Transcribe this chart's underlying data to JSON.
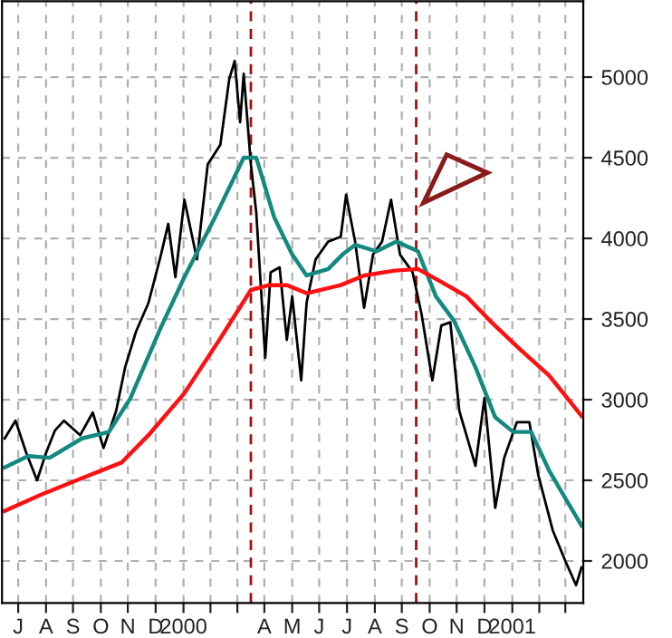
{
  "chart_data": {
    "type": "line",
    "series": [
      {
        "color": "#000000",
        "x": [
          "1999-07-01",
          "1999-07-13",
          "1999-07-25",
          "1999-08-06",
          "1999-08-16",
          "1999-08-26",
          "1999-09-05",
          "1999-09-23",
          "1999-10-07",
          "1999-10-19",
          "1999-11-02",
          "1999-11-12",
          "1999-11-24",
          "1999-12-08",
          "1999-12-22",
          "1999-12-30",
          "2000-01-07",
          "2000-01-17",
          "2000-01-31",
          "2000-02-12",
          "2000-02-26",
          "2000-03-07",
          "2000-03-13",
          "2000-03-19",
          "2000-03-23",
          "2000-03-31",
          "2000-04-06",
          "2000-04-16",
          "2000-04-22",
          "2000-05-02",
          "2000-05-10",
          "2000-05-16",
          "2000-05-26",
          "2000-06-01",
          "2000-06-11",
          "2000-06-25",
          "2000-07-09",
          "2000-07-15",
          "2000-07-25",
          "2000-08-04",
          "2000-08-14",
          "2000-08-24",
          "2000-09-03",
          "2000-09-13",
          "2000-09-27",
          "2000-10-07",
          "2000-10-19",
          "2000-10-29",
          "2000-11-08",
          "2000-11-18",
          "2000-12-06",
          "2000-12-16",
          "2000-12-28",
          "2001-01-07",
          "2001-01-21",
          "2001-02-04",
          "2001-02-14",
          "2001-03-02",
          "2001-03-16",
          "2001-03-28",
          "2001-04-03"
        ],
        "values": [
          2760,
          2870,
          2670,
          2500,
          2670,
          2810,
          2870,
          2780,
          2920,
          2700,
          2930,
          3200,
          3420,
          3600,
          3900,
          4090,
          3760,
          4240,
          3870,
          4460,
          4580,
          4990,
          5100,
          4720,
          5020,
          4460,
          4160,
          3260,
          3790,
          3820,
          3370,
          3640,
          3120,
          3600,
          3870,
          3980,
          4010,
          4270,
          3980,
          3570,
          3900,
          3980,
          4240,
          3900,
          3790,
          3530,
          3120,
          3460,
          3480,
          2930,
          2590,
          3010,
          2330,
          2640,
          2860,
          2860,
          2530,
          2190,
          2000,
          1850,
          1960
        ]
      },
      {
        "color": "#138a80",
        "x": [
          "1999-07-01",
          "1999-07-27",
          "1999-08-20",
          "1999-09-25",
          "1999-10-25",
          "1999-11-18",
          "1999-12-22",
          "2000-01-17",
          "2000-02-20",
          "2000-03-23",
          "2000-04-06",
          "2000-04-26",
          "2000-05-16",
          "2000-06-01",
          "2000-06-25",
          "2000-07-11",
          "2000-07-25",
          "2000-08-18",
          "2000-09-09",
          "2000-10-03",
          "2000-10-23",
          "2000-11-12",
          "2000-12-06",
          "2000-12-28",
          "2001-01-17",
          "2001-02-06",
          "2001-02-26",
          "2001-03-18",
          "2001-04-03"
        ],
        "values": [
          2580,
          2650,
          2640,
          2760,
          2800,
          3010,
          3450,
          3760,
          4130,
          4500,
          4500,
          4130,
          3900,
          3770,
          3810,
          3900,
          3960,
          3920,
          3980,
          3920,
          3640,
          3490,
          3200,
          2890,
          2800,
          2800,
          2560,
          2370,
          2220
        ]
      },
      {
        "color": "#ff1010",
        "x": [
          "1999-07-01",
          "1999-08-10",
          "1999-09-19",
          "1999-11-08",
          "1999-12-08",
          "2000-01-17",
          "2000-02-26",
          "2000-03-31",
          "2000-04-20",
          "2000-05-10",
          "2000-06-01",
          "2000-07-09",
          "2000-08-04",
          "2000-09-07",
          "2000-10-03",
          "2000-10-29",
          "2000-11-26",
          "2000-12-22",
          "2001-01-25",
          "2001-02-26",
          "2001-04-03"
        ],
        "values": [
          2310,
          2410,
          2500,
          2610,
          2780,
          3040,
          3380,
          3680,
          3710,
          3710,
          3660,
          3710,
          3770,
          3800,
          3810,
          3730,
          3640,
          3490,
          3310,
          3150,
          2900
        ]
      }
    ],
    "xlim": [
      "1999-06-28",
      "2001-04-05"
    ],
    "xticks": [
      {
        "value": "1999-07-16",
        "label": "J"
      },
      {
        "value": "1999-08-16",
        "label": "A"
      },
      {
        "value": "1999-09-15",
        "label": "S"
      },
      {
        "value": "1999-10-16",
        "label": "O"
      },
      {
        "value": "1999-11-15",
        "label": "N"
      },
      {
        "value": "1999-12-16",
        "label": "D"
      },
      {
        "value": "2000-01-16",
        "label": "2000"
      },
      {
        "value": "2000-02-15",
        "label": null
      },
      {
        "value": "2000-03-16",
        "label": null
      },
      {
        "value": "2000-04-15",
        "label": "A"
      },
      {
        "value": "2000-05-16",
        "label": "M"
      },
      {
        "value": "2000-06-15",
        "label": "J"
      },
      {
        "value": "2000-07-16",
        "label": "J"
      },
      {
        "value": "2000-08-16",
        "label": "A"
      },
      {
        "value": "2000-09-15",
        "label": "S"
      },
      {
        "value": "2000-10-16",
        "label": "O"
      },
      {
        "value": "2000-11-15",
        "label": "N"
      },
      {
        "value": "2000-12-16",
        "label": "D"
      },
      {
        "value": "2001-01-16",
        "label": "2001"
      },
      {
        "value": "2001-02-15",
        "label": null
      },
      {
        "value": "2001-03-16",
        "label": null
      }
    ],
    "ylim": [
      1740,
      5470
    ],
    "yticks": [
      2000,
      2500,
      3000,
      3500,
      4000,
      4500,
      5000
    ],
    "ref_lines": [
      {
        "axis": "x",
        "value": "2000-03-31",
        "color": "#a01010",
        "line_style": "dashed"
      },
      {
        "axis": "x",
        "value": "2000-10-01",
        "color": "#a01010",
        "line_style": "dashed"
      }
    ],
    "grid": true,
    "legend": false,
    "marker": "none",
    "line_style": "solid"
  }
}
